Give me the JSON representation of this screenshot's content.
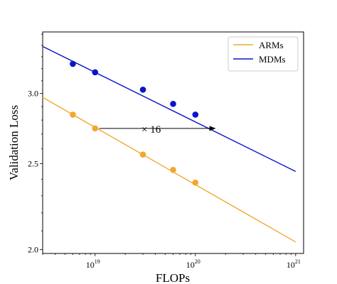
{
  "chart_data": {
    "type": "line",
    "xlabel": "FLOPs",
    "ylabel": "Validation Loss",
    "x_scale": "log",
    "y_scale": "log",
    "xlim": [
      3e+18,
      1.2e+21
    ],
    "ylim": [
      1.98,
      3.52
    ],
    "x_ticks": [
      {
        "value": 1e+19,
        "base": "10",
        "exp": "19"
      },
      {
        "value": 1e+20,
        "base": "10",
        "exp": "20"
      },
      {
        "value": 1e+21,
        "base": "10",
        "exp": "21"
      }
    ],
    "y_ticks": [
      {
        "value": 2.0,
        "label": "2.0"
      },
      {
        "value": 2.5,
        "label": "2.5"
      },
      {
        "value": 3.0,
        "label": "3.0"
      }
    ],
    "legend_position": "top-right",
    "series": [
      {
        "name": "ARMs",
        "color": "#f0a830",
        "fit_line": {
          "x": [
            3e+18,
            1e+21
          ],
          "y": [
            2.97,
            2.04
          ]
        },
        "points": [
          {
            "x": 6e+18,
            "y": 2.84
          },
          {
            "x": 1e+19,
            "y": 2.74
          },
          {
            "x": 3e+19,
            "y": 2.56
          },
          {
            "x": 6e+19,
            "y": 2.46
          },
          {
            "x": 1e+20,
            "y": 2.38
          }
        ]
      },
      {
        "name": "MDMs",
        "color": "#0a14c8",
        "fit_line": {
          "x": [
            3e+18,
            1e+21
          ],
          "y": [
            3.39,
            2.45
          ]
        },
        "points": [
          {
            "x": 6e+18,
            "y": 3.24
          },
          {
            "x": 1e+19,
            "y": 3.17
          },
          {
            "x": 3e+19,
            "y": 3.03
          },
          {
            "x": 6e+19,
            "y": 2.92
          },
          {
            "x": 1e+20,
            "y": 2.84
          }
        ]
      }
    ],
    "annotation": {
      "text": "× 16",
      "arrow_from": {
        "x": 1.1e+19,
        "y": 2.74
      },
      "arrow_to": {
        "x": 1.6e+20,
        "y": 2.74
      }
    }
  }
}
